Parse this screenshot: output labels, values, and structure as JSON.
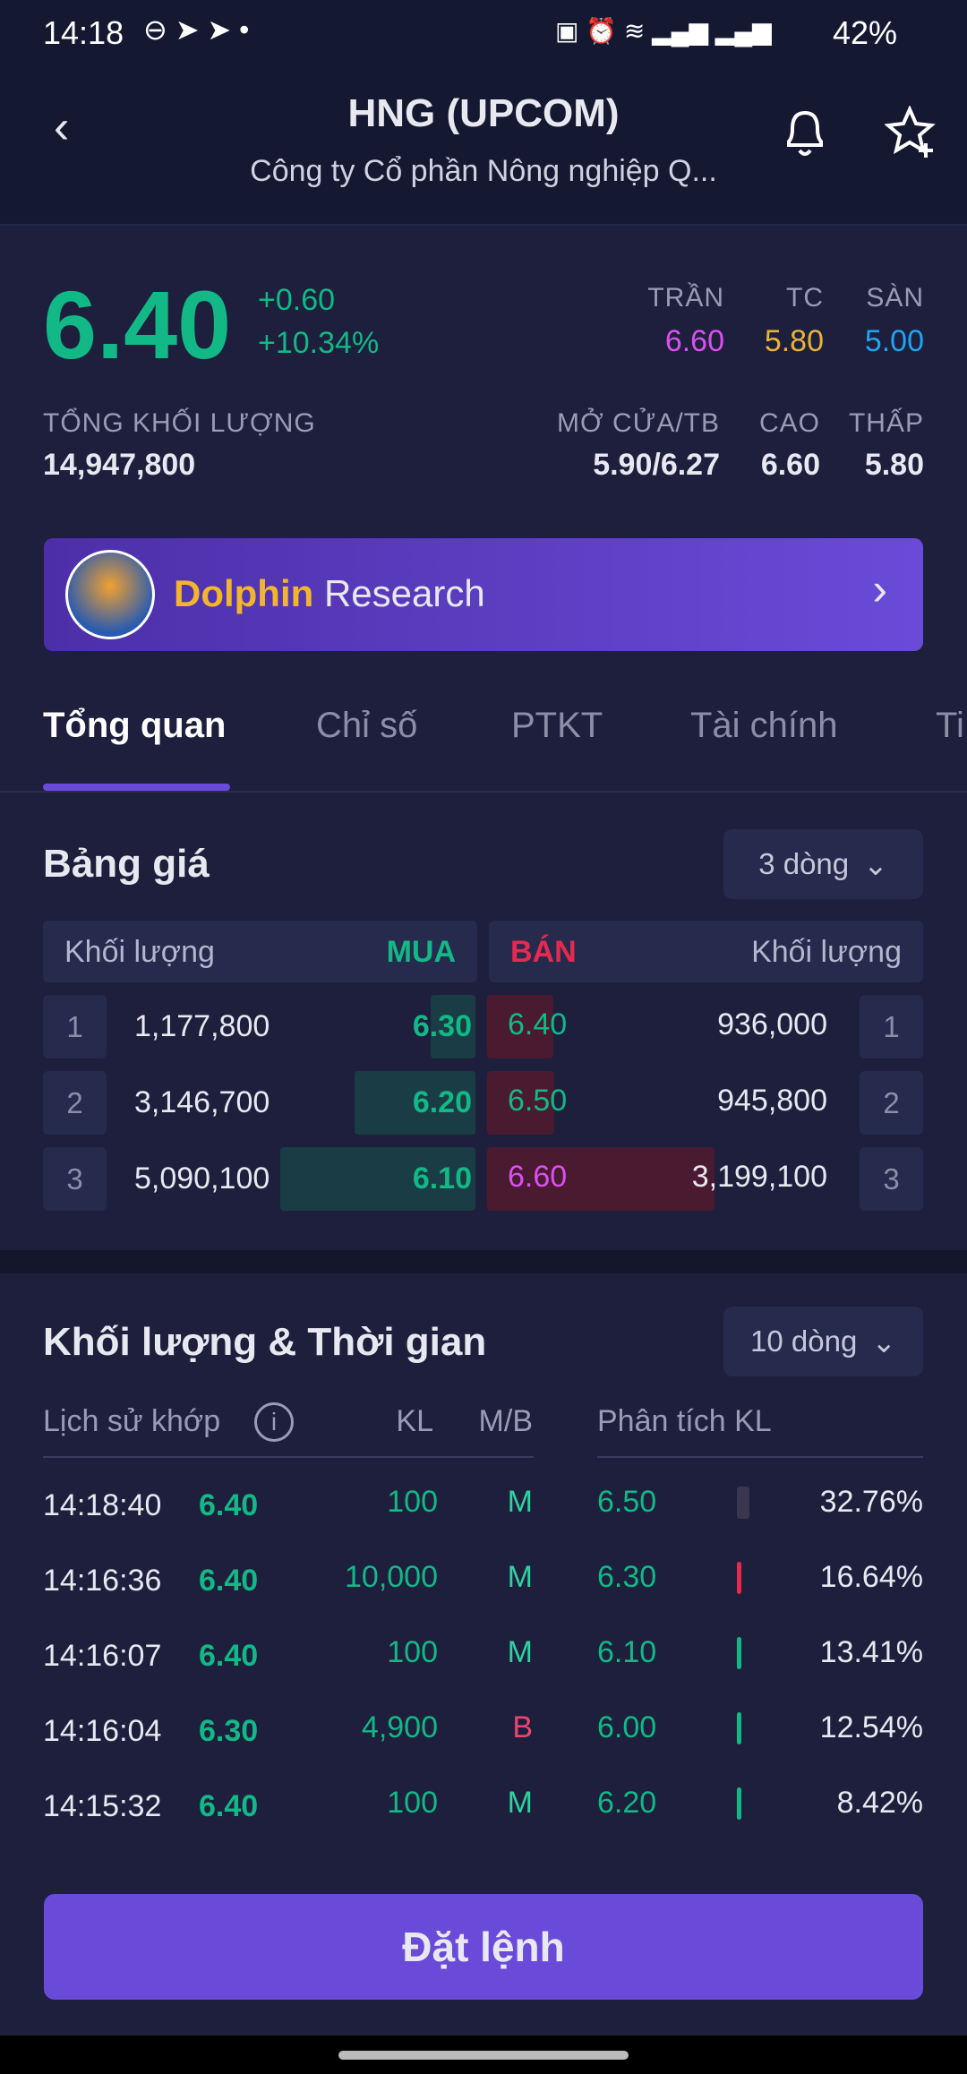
{
  "status": {
    "time": "14:18",
    "battery": "42%",
    "net1": "Vo) LTE1",
    "net2": "Vo) LTE2"
  },
  "header": {
    "title": "HNG  (UPCOM)",
    "subtitle": "Công ty Cổ phần Nông nghiệp Q..."
  },
  "quote": {
    "price": "6.40",
    "change": "+0.60",
    "change_pct": "+10.34%",
    "ceiling_label": "TRẦN",
    "ceiling": "6.60",
    "ref_label": "TC",
    "ref": "5.80",
    "floor_label": "SÀN",
    "floor": "5.00",
    "volume_label": "TỔNG KHỐI LƯỢNG",
    "volume": "14,947,800",
    "open_label": "MỞ CỬA/TB",
    "open": "5.90/6.27",
    "high_label": "CAO",
    "high": "6.60",
    "low_label": "THẤP",
    "low": "5.80"
  },
  "banner": {
    "brand": "Dolphin",
    "text": " Research"
  },
  "tabs": [
    "Tổng quan",
    "Chỉ số",
    "PTKT",
    "Tài chính",
    "Ti"
  ],
  "orderbook": {
    "title": "Bảng giá",
    "rows_option": "3 dòng",
    "vol_label": "Khối lượng",
    "buy_label": "MUA",
    "sell_label": "BÁN",
    "rows": [
      {
        "idx": "1",
        "buy_vol": "1,177,800",
        "buy_price": "6.30",
        "sell_price": "6.40",
        "sell_vol": "936,000",
        "buy_n": 1177800,
        "sell_n": 936000,
        "sell_color": "#12b886"
      },
      {
        "idx": "2",
        "buy_vol": "3,146,700",
        "buy_price": "6.20",
        "sell_price": "6.50",
        "sell_vol": "945,800",
        "buy_n": 3146700,
        "sell_n": 945800,
        "sell_color": "#12b886"
      },
      {
        "idx": "3",
        "buy_vol": "5,090,100",
        "buy_price": "6.10",
        "sell_price": "6.60",
        "sell_vol": "3,199,100",
        "buy_n": 5090100,
        "sell_n": 3199100,
        "sell_color": "#d94ff0"
      }
    ]
  },
  "trades": {
    "title": "Khối lượng & Thời gian",
    "rows_option": "10 dòng",
    "history_label": "Lịch sử khớp",
    "kl_label": "KL",
    "mb_label": "M/B",
    "analysis_label": "Phân tích KL",
    "rows": [
      {
        "time": "14:18:40",
        "price": "6.40",
        "kl": "100",
        "mb": "M",
        "a_price": "6.50",
        "a_pct": "32.76%",
        "bar": "#3a3650"
      },
      {
        "time": "14:16:36",
        "price": "6.40",
        "kl": "10,000",
        "mb": "M",
        "a_price": "6.30",
        "a_pct": "16.64%",
        "bar": "#e5294f"
      },
      {
        "time": "14:16:07",
        "price": "6.40",
        "kl": "100",
        "mb": "M",
        "a_price": "6.10",
        "a_pct": "13.41%",
        "bar": "#12b886"
      },
      {
        "time": "14:16:04",
        "price": "6.30",
        "kl": "4,900",
        "mb": "B",
        "a_price": "6.00",
        "a_pct": "12.54%",
        "bar": "#12b886"
      },
      {
        "time": "14:15:32",
        "price": "6.40",
        "kl": "100",
        "mb": "M",
        "a_price": "6.20",
        "a_pct": "8.42%",
        "bar": "#12b886"
      }
    ]
  },
  "order_button": "Đặt lệnh"
}
